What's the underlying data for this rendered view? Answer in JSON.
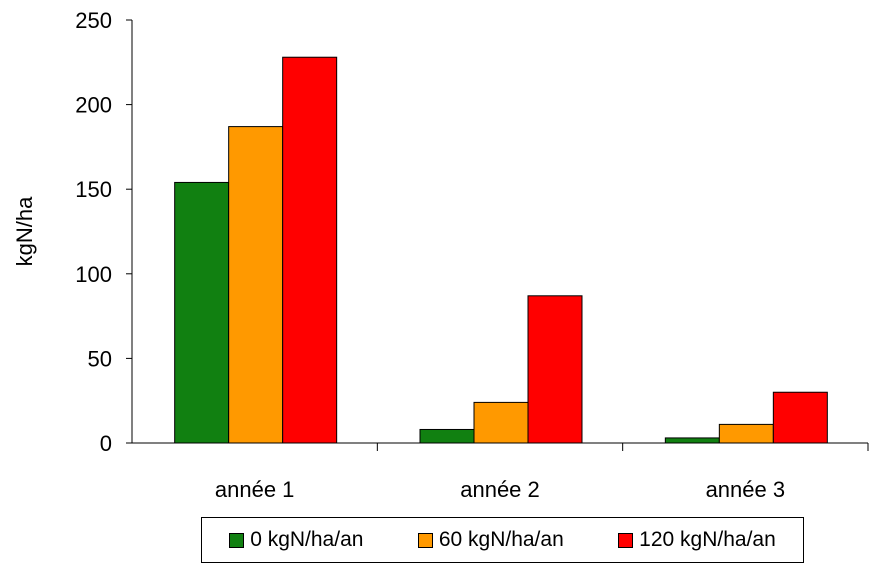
{
  "chart_data": {
    "type": "bar",
    "categories": [
      "année 1",
      "année 2",
      "année 3"
    ],
    "series": [
      {
        "name": "0 kgN/ha/an",
        "color": "#118011",
        "values": [
          154,
          8,
          3
        ]
      },
      {
        "name": "60 kgN/ha/an",
        "color": "#ff9900",
        "values": [
          187,
          24,
          11
        ]
      },
      {
        "name": "120 kgN/ha/an",
        "color": "#ff0000",
        "values": [
          228,
          87,
          30
        ]
      }
    ],
    "ylabel": "kgN/ha",
    "ylim": [
      0,
      250
    ],
    "yticks": [
      0,
      50,
      100,
      150,
      200,
      250
    ],
    "grid": false,
    "legend_position": "bottom"
  }
}
